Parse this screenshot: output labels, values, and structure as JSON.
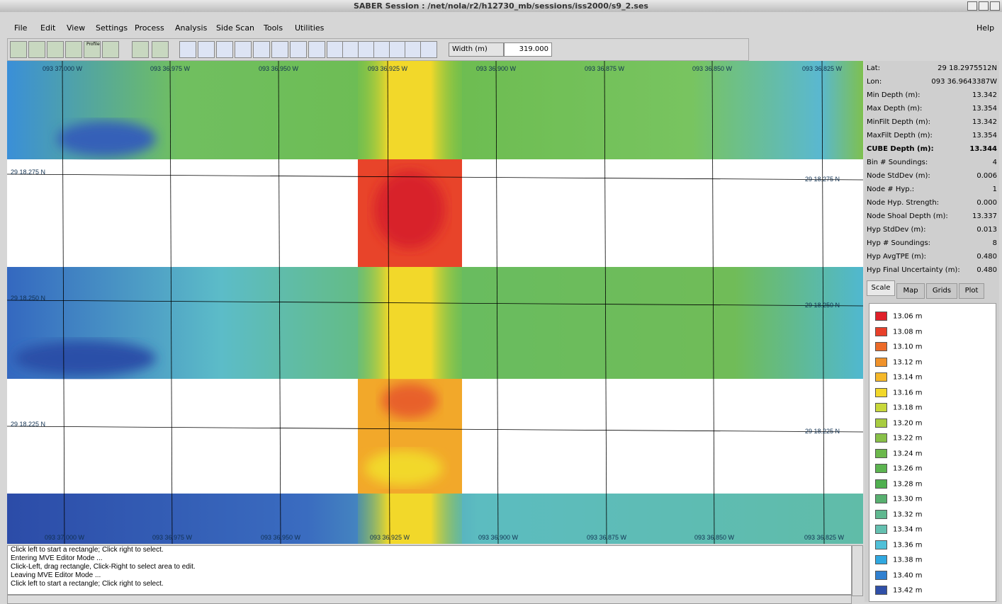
{
  "window_title": "SABER Session : /net/nola/r2/h12730_mb/sessions/iss2000/s9_2.ses",
  "menu": [
    "File",
    "Edit",
    "View",
    "Settings",
    "Process",
    "Analysis",
    "Side Scan",
    "Tools",
    "Utilities"
  ],
  "help": "Help",
  "toolbar": {
    "profile_icon": "Profile",
    "width_label": "Width (m)",
    "width_value": "319.000"
  },
  "map": {
    "top_lon_labels": [
      "093 37.000 W",
      "093 36.975 W",
      "093 36.950 W",
      "093 36.925 W",
      "093 36.900 W",
      "093 36.875 W",
      "093 36.850 W",
      "093 36.825 W"
    ],
    "bottom_lon_labels": [
      "093 37.000 W",
      "093 36.975 W",
      "093 36.950 W",
      "093 36.925 W",
      "093 36.900 W",
      "093 36.875 W",
      "093 36.850 W",
      "093 36.825 W"
    ],
    "left_lat_labels": [
      "29 18.275 N",
      "29 18.250 N",
      "29 18.225 N"
    ],
    "right_lat_labels": [
      "29 18.275 N",
      "29 18.250 N",
      "29 18.225 N"
    ]
  },
  "info": [
    {
      "label": "Lat:",
      "value": "29 18.2975512N"
    },
    {
      "label": "Lon:",
      "value": "093 36.9643387W"
    },
    {
      "label": "Min Depth (m):",
      "value": "13.342"
    },
    {
      "label": "Max Depth (m):",
      "value": "13.354"
    },
    {
      "label": "MinFilt Depth (m):",
      "value": "13.342"
    },
    {
      "label": "MaxFilt Depth (m):",
      "value": "13.354"
    },
    {
      "label": "CUBE Depth (m):",
      "value": "13.344",
      "bold": true
    },
    {
      "label": "Bin # Soundings:",
      "value": "4"
    },
    {
      "label": "Node StdDev (m):",
      "value": "0.006"
    },
    {
      "label": "Node # Hyp.:",
      "value": "1"
    },
    {
      "label": "Node Hyp. Strength:",
      "value": "0.000"
    },
    {
      "label": "Node Shoal Depth (m):",
      "value": "13.337"
    },
    {
      "label": "Hyp StdDev (m):",
      "value": "0.013"
    },
    {
      "label": "Hyp # Soundings:",
      "value": "8"
    },
    {
      "label": "Hyp AvgTPE (m):",
      "value": "0.480"
    },
    {
      "label": "Hyp Final Uncertainty (m):",
      "value": "0.480"
    }
  ],
  "tabs": [
    "Scale",
    "Map",
    "Grids",
    "Plot"
  ],
  "legend": [
    {
      "label": "13.06 m",
      "color": "#e0202a"
    },
    {
      "label": "13.08 m",
      "color": "#e8402a"
    },
    {
      "label": "13.10 m",
      "color": "#ec6a28"
    },
    {
      "label": "13.12 m",
      "color": "#f0922a"
    },
    {
      "label": "13.14 m",
      "color": "#f5b82a"
    },
    {
      "label": "13.16 m",
      "color": "#f2d82a"
    },
    {
      "label": "13.18 m",
      "color": "#c8d83a"
    },
    {
      "label": "13.20 m",
      "color": "#a8cc40"
    },
    {
      "label": "13.22 m",
      "color": "#88c048"
    },
    {
      "label": "13.24 m",
      "color": "#6cb84c"
    },
    {
      "label": "13.26 m",
      "color": "#5cb450"
    },
    {
      "label": "13.28 m",
      "color": "#50b050"
    },
    {
      "label": "13.30 m",
      "color": "#58b070"
    },
    {
      "label": "13.32 m",
      "color": "#60b890"
    },
    {
      "label": "13.34 m",
      "color": "#64c0b0"
    },
    {
      "label": "13.36 m",
      "color": "#50c0d8"
    },
    {
      "label": "13.38 m",
      "color": "#30a8e0"
    },
    {
      "label": "13.40 m",
      "color": "#3080d0"
    },
    {
      "label": "13.42 m",
      "color": "#3050a8"
    }
  ],
  "log": [
    "Click left to start a rectangle; Click right to select.",
    "Entering MVE Editor Mode ...",
    "Click-Left, drag rectangle, Click-Right to select area to edit.",
    "Leaving MVE Editor Mode ...",
    "Click left to start a rectangle; Click right to select."
  ]
}
